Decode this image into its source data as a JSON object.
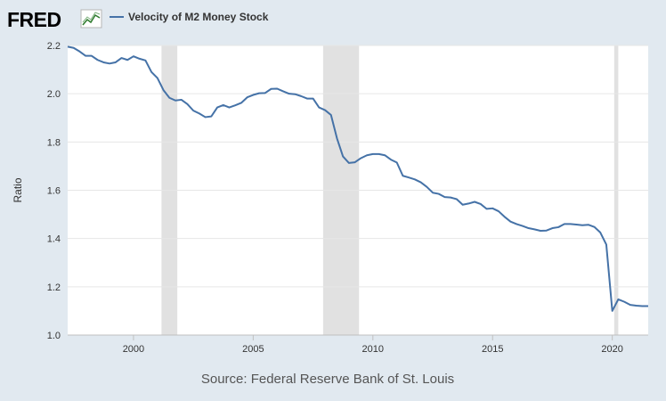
{
  "logo": {
    "text": "FRED"
  },
  "source": "Source: Federal Reserve Bank of St. Louis",
  "colors": {
    "background": "#e1e9f0",
    "plot_background": "#ffffff",
    "line": "#4572a7",
    "recession": "#e1e1e1",
    "gridline": "#e6e6e6"
  },
  "chart_data": {
    "type": "line",
    "title": "",
    "xlabel": "",
    "ylabel": "Ratio",
    "xlim": [
      1997.25,
      2021.5
    ],
    "ylim": [
      1.0,
      2.2
    ],
    "x_ticks": [
      2000,
      2005,
      2010,
      2015,
      2020
    ],
    "y_ticks": [
      1.0,
      1.2,
      1.4,
      1.6,
      1.8,
      2.0,
      2.2
    ],
    "y_tick_labels": [
      "1.0",
      "1.2",
      "1.4",
      "1.6",
      "1.8",
      "2.0",
      "2.2"
    ],
    "grid": true,
    "legend": "top-left",
    "recessions": [
      [
        2001.17,
        2001.83
      ],
      [
        2007.92,
        2009.42
      ],
      [
        2020.08,
        2020.25
      ]
    ],
    "series": [
      {
        "name": "Velocity of M2 Money Stock",
        "x": [
          1997.25,
          1997.5,
          1997.75,
          1998.0,
          1998.25,
          1998.5,
          1998.75,
          1999.0,
          1999.25,
          1999.5,
          1999.75,
          2000.0,
          2000.25,
          2000.5,
          2000.75,
          2001.0,
          2001.25,
          2001.5,
          2001.75,
          2002.0,
          2002.25,
          2002.5,
          2002.75,
          2003.0,
          2003.25,
          2003.5,
          2003.75,
          2004.0,
          2004.25,
          2004.5,
          2004.75,
          2005.0,
          2005.25,
          2005.5,
          2005.75,
          2006.0,
          2006.25,
          2006.5,
          2006.75,
          2007.0,
          2007.25,
          2007.5,
          2007.75,
          2008.0,
          2008.25,
          2008.5,
          2008.75,
          2009.0,
          2009.25,
          2009.5,
          2009.75,
          2010.0,
          2010.25,
          2010.5,
          2010.75,
          2011.0,
          2011.25,
          2011.5,
          2011.75,
          2012.0,
          2012.25,
          2012.5,
          2012.75,
          2013.0,
          2013.25,
          2013.5,
          2013.75,
          2014.0,
          2014.25,
          2014.5,
          2014.75,
          2015.0,
          2015.25,
          2015.5,
          2015.75,
          2016.0,
          2016.25,
          2016.5,
          2016.75,
          2017.0,
          2017.25,
          2017.5,
          2017.75,
          2018.0,
          2018.25,
          2018.5,
          2018.75,
          2019.0,
          2019.25,
          2019.5,
          2019.75,
          2020.0,
          2020.25,
          2020.5,
          2020.75,
          2021.0,
          2021.25,
          2021.5
        ],
        "y": [
          2.195,
          2.19,
          2.175,
          2.157,
          2.157,
          2.14,
          2.13,
          2.125,
          2.13,
          2.148,
          2.14,
          2.155,
          2.145,
          2.138,
          2.09,
          2.065,
          2.015,
          1.983,
          1.972,
          1.975,
          1.957,
          1.93,
          1.918,
          1.903,
          1.906,
          1.943,
          1.953,
          1.943,
          1.952,
          1.962,
          1.985,
          1.995,
          2.002,
          2.003,
          2.02,
          2.021,
          2.01,
          2.0,
          1.998,
          1.99,
          1.98,
          1.98,
          1.943,
          1.932,
          1.912,
          1.815,
          1.74,
          1.713,
          1.716,
          1.733,
          1.745,
          1.75,
          1.75,
          1.745,
          1.727,
          1.715,
          1.66,
          1.653,
          1.645,
          1.633,
          1.614,
          1.59,
          1.585,
          1.572,
          1.57,
          1.563,
          1.54,
          1.545,
          1.552,
          1.543,
          1.523,
          1.525,
          1.513,
          1.49,
          1.47,
          1.46,
          1.452,
          1.443,
          1.438,
          1.432,
          1.433,
          1.443,
          1.447,
          1.46,
          1.46,
          1.458,
          1.455,
          1.457,
          1.448,
          1.425,
          1.375,
          1.1,
          1.148,
          1.138,
          1.125,
          1.122,
          1.12,
          1.12
        ]
      }
    ]
  }
}
